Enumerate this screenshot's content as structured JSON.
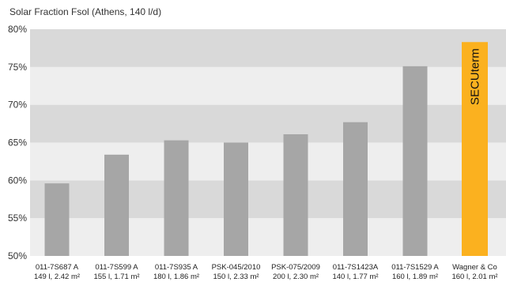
{
  "chart_data": {
    "type": "bar",
    "title": "Solar Fraction Fsol (Athens, 140 l/d)",
    "xlabel": "",
    "ylabel": "",
    "ylim": [
      50,
      80
    ],
    "yticks": [
      "50%",
      "55%",
      "60%",
      "65%",
      "70%",
      "75%",
      "80%"
    ],
    "ytick_values": [
      50,
      55,
      60,
      65,
      70,
      75,
      80
    ],
    "grid": "alternating horizontal bands",
    "legend": "none",
    "categories": [
      {
        "line1": "011-7S687 A",
        "line2": "149 l, 2.42 m²"
      },
      {
        "line1": "011-7S599 A",
        "line2": "155 l, 1.71 m²"
      },
      {
        "line1": "011-7S935 A",
        "line2": "180 l, 1.86 m²"
      },
      {
        "line1": "PSK-045/2010",
        "line2": "150 l, 2.33 m²"
      },
      {
        "line1": "PSK-075/2009",
        "line2": "200 l, 2.30 m²"
      },
      {
        "line1": "011-7S1423A",
        "line2": "140 l, 1.77 m²"
      },
      {
        "line1": "011-7S1529 A",
        "line2": "160 l, 1.89 m²"
      },
      {
        "line1": "Wagner & Co",
        "line2": "160 l, 2.01 m²"
      }
    ],
    "values": [
      59.6,
      63.4,
      65.3,
      65.0,
      66.1,
      67.7,
      75.1,
      78.3
    ],
    "highlight": {
      "index": 7,
      "label": "SECUterm",
      "color": "#fbb11f"
    },
    "colors": {
      "bar": "#a6a6a6",
      "band_dark": "#d9d9d9",
      "band_light": "#eeeeee"
    }
  }
}
